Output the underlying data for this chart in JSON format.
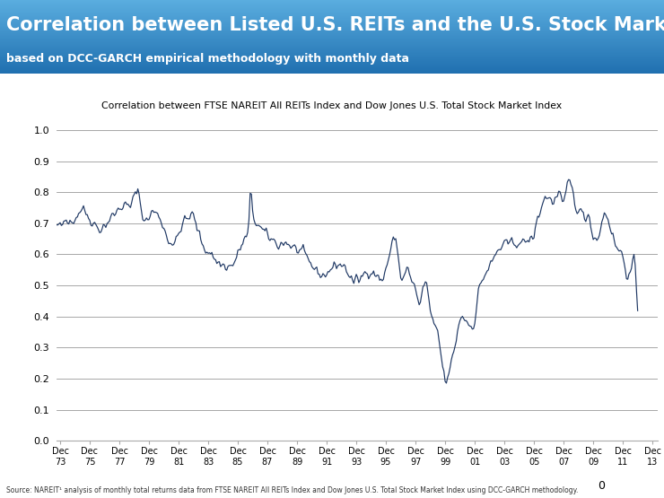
{
  "title_main": "Correlation between Listed U.S. REITs and the U.S. Stock Market",
  "title_sub": "based on DCC-GARCH empirical methodology with monthly data",
  "chart_title": "Correlation between FTSE NAREIT All REITs Index and Dow Jones U.S. Total Stock Market Index",
  "source_text": "Source: NAREIT¹ analysis of monthly total returns data from FTSE NAREIT All REITs Index and Dow Jones U.S. Total Stock Market Index using DCC-GARCH methodology.",
  "header_bg_top": "#5baee0",
  "header_bg_bot": "#2070b0",
  "header_red_bar": "#8b0000",
  "line_color": "#1f3864",
  "background_color": "#ffffff",
  "ylim": [
    0.0,
    1.05
  ],
  "start_year": 1973,
  "end_year": 2013,
  "xtick_years": [
    1973,
    1975,
    1977,
    1979,
    1981,
    1983,
    1985,
    1987,
    1989,
    1991,
    1993,
    1995,
    1997,
    1999,
    2001,
    2003,
    2005,
    2007,
    2009,
    2011,
    2013
  ]
}
